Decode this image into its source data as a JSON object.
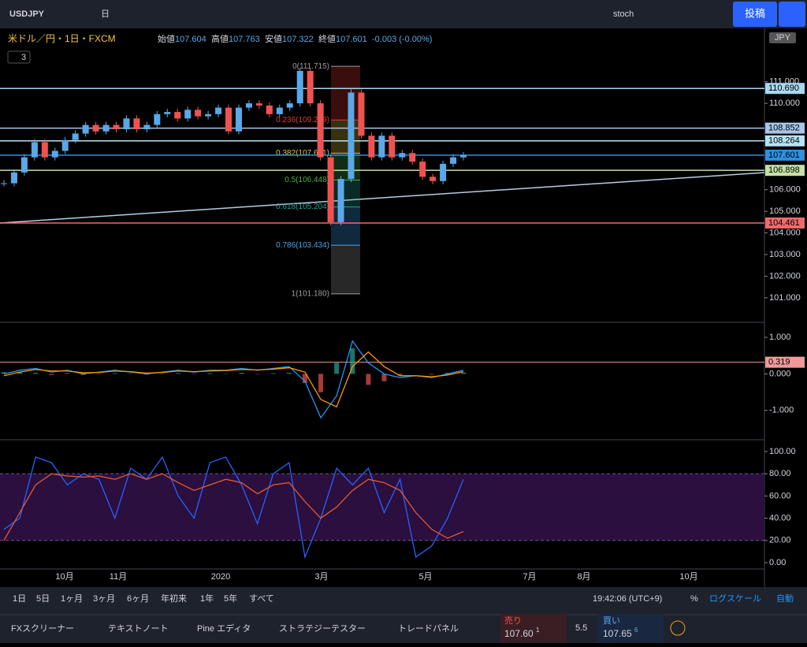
{
  "toolbar": {
    "symbol": "USDJPY",
    "interval": "日",
    "indicator": "stoch",
    "publish": "投稿"
  },
  "legend": {
    "title": "米ドル／円・1日・FXCM",
    "open_label": "始値",
    "open": "107.604",
    "high_label": "高値",
    "high": "107.763",
    "low_label": "安値",
    "low": "107.322",
    "close_label": "終値",
    "close": "107.601",
    "change": "-0.003 (-0.00%)",
    "indicators": "3"
  },
  "currency": "JPY",
  "price_axis": {
    "range": [
      99.9,
      113.47
    ],
    "ticks": [
      {
        "value": 101,
        "label": "101.000"
      },
      {
        "value": 102,
        "label": "102.000"
      },
      {
        "value": 103,
        "label": "103.000"
      },
      {
        "value": 104,
        "label": "104.000"
      },
      {
        "value": 105,
        "label": "105.000"
      },
      {
        "value": 106,
        "label": "106.000"
      },
      {
        "value": 110,
        "label": "110.000"
      },
      {
        "value": 111,
        "label": "111.000"
      }
    ]
  },
  "price_lines": [
    {
      "value": 110.69,
      "label": "110.690",
      "color": "#a7d8ee"
    },
    {
      "value": 108.852,
      "label": "108.852",
      "color": "#a9c4e8"
    },
    {
      "value": 108.264,
      "label": "108.264",
      "color": "#b6e3f4"
    },
    {
      "value": 107.601,
      "label": "107.601",
      "color": "#2f8fe0"
    },
    {
      "value": 106.898,
      "label": "106.898",
      "color": "#c5e1a5"
    },
    {
      "value": 104.461,
      "label": "104.461",
      "color": "#ef6b6b"
    }
  ],
  "fib": [
    {
      "label": "0(111.715)",
      "value": 111.715,
      "color": "#9e9e9e"
    },
    {
      "label": "0.236(109.229)",
      "value": 109.229,
      "color": "#e53935"
    },
    {
      "label": "0.382(107.691)",
      "value": 107.691,
      "color": "#e0c341"
    },
    {
      "label": "0.5(106.448)",
      "value": 106.448,
      "color": "#4caf50"
    },
    {
      "label": "0.618(105.204)",
      "value": 105.204,
      "color": "#26a69a"
    },
    {
      "label": "0.786(103.434)",
      "value": 103.434,
      "color": "#42a5f5"
    },
    {
      "label": "1(101.180)",
      "value": 101.18,
      "color": "#9e9e9e"
    }
  ],
  "price": {
    "up_color": "#5aa8e8",
    "down_color": "#ef5350",
    "closes": [
      106.3,
      106.8,
      107.5,
      108.2,
      107.5,
      107.8,
      108.3,
      108.6,
      109.0,
      108.7,
      109.0,
      108.8,
      109.3,
      108.8,
      109.0,
      109.5,
      109.6,
      109.3,
      109.7,
      109.4,
      109.5,
      109.8,
      108.7,
      109.8,
      110.0,
      109.9,
      109.5,
      109.8,
      110.0,
      111.5,
      110.0,
      107.5,
      104.5,
      106.5,
      110.5,
      108.5,
      107.5,
      108.5,
      107.5,
      107.7,
      107.3,
      106.6,
      106.4,
      107.2,
      107.5,
      107.6
    ]
  },
  "macd": {
    "range": [
      -1.78,
      1.39
    ],
    "ticks": [
      {
        "value": 1,
        "label": "1.000"
      },
      {
        "value": 0,
        "label": "0.000"
      },
      {
        "value": -1,
        "label": "-1.000"
      }
    ],
    "level": {
      "value": 0.319,
      "label": "0.319"
    },
    "macd": [
      0,
      0.1,
      0.15,
      0.05,
      0.1,
      0,
      0.05,
      0.1,
      0.05,
      0,
      0.05,
      0.1,
      0.05,
      0.1,
      0.1,
      0.15,
      0.1,
      0.15,
      0.2,
      -0.2,
      -1.2,
      -0.6,
      0.9,
      0.3,
      0,
      -0.1,
      -0.05,
      -0.1,
      0,
      0.1
    ],
    "signal": [
      -0.05,
      0.05,
      0.12,
      0.08,
      0.08,
      0.03,
      0.04,
      0.08,
      0.06,
      0.02,
      0.04,
      0.08,
      0.06,
      0.08,
      0.09,
      0.12,
      0.11,
      0.13,
      0.17,
      0.05,
      -0.7,
      -0.9,
      0.2,
      0.6,
      0.2,
      -0.05,
      -0.05,
      -0.08,
      -0.03,
      0.06
    ]
  },
  "stoch": {
    "range": [
      -5.7,
      109.2
    ],
    "band": [
      20,
      80
    ],
    "ticks": [
      {
        "value": 100,
        "label": "100.00"
      },
      {
        "value": 80,
        "label": "80.00"
      },
      {
        "value": 60,
        "label": "60.00"
      },
      {
        "value": 40,
        "label": "40.00"
      },
      {
        "value": 20,
        "label": "20.00"
      },
      {
        "value": 0,
        "label": "0.00"
      }
    ],
    "k": [
      30,
      40,
      95,
      90,
      70,
      80,
      75,
      40,
      85,
      75,
      95,
      60,
      40,
      90,
      95,
      70,
      35,
      80,
      90,
      5,
      40,
      85,
      70,
      85,
      45,
      75,
      5,
      15,
      40,
      75
    ],
    "d": [
      20,
      45,
      70,
      80,
      78,
      77,
      78,
      75,
      80,
      75,
      80,
      72,
      65,
      70,
      75,
      72,
      62,
      70,
      72,
      55,
      40,
      50,
      65,
      75,
      72,
      65,
      45,
      30,
      22,
      28
    ]
  },
  "time_axis": [
    "10月",
    "11月",
    "2020",
    "3月",
    "5月",
    "7月",
    "8月",
    "10月"
  ],
  "ranges": [
    "1日",
    "5日",
    "1ヶ月",
    "3ヶ月",
    "6ヶ月",
    "年初来",
    "1年",
    "5年",
    "すべて"
  ],
  "clock": "19:42:06 (UTC+9)",
  "percent": "%",
  "log_scale": "ログスケール",
  "auto": "自動",
  "tabs": [
    "FXスクリーナー",
    "テキストノート",
    "Pine エディタ",
    "ストラテジーテスター",
    "トレードパネル"
  ],
  "trade": {
    "sell": "売り",
    "sell_price": "107.60",
    "sell_sup": "1",
    "spread": "5.5",
    "buy": "買い",
    "buy_price": "107.65",
    "buy_sup": "6"
  }
}
